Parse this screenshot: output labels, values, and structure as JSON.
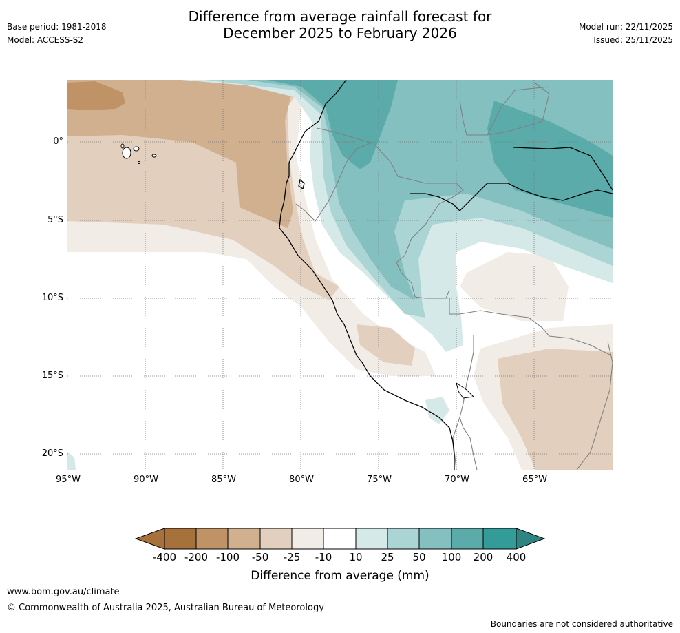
{
  "header": {
    "title_line1": "Difference from average rainfall forecast for",
    "title_line2": "December 2025 to February 2026",
    "base_period": "Base period: 1981-2018",
    "model": "Model: ACCESS-S2",
    "model_run": "Model run: 22/11/2025",
    "issued": "Issued: 25/11/2025"
  },
  "map": {
    "lat_labels": [
      "0°",
      "5°S",
      "10°S",
      "15°S",
      "20°S"
    ],
    "lon_labels": [
      "95°W",
      "90°W",
      "85°W",
      "80°W",
      "75°W",
      "70°W",
      "65°W"
    ],
    "colors": {
      "dry_400": "#a6713a",
      "dry_200": "#c09366",
      "dry_100": "#d0b08f",
      "dry_50": "#e2cfbd",
      "dry_25": "#f1ece6",
      "neutral": "#ffffff",
      "wet_25": "#d5e9e8",
      "wet_50": "#abd5d4",
      "wet_100": "#84c0bf",
      "wet_200": "#5aabaa",
      "wet_400": "#339b98",
      "wet_max": "#2e8481"
    }
  },
  "colorbar": {
    "ticks": [
      "-400",
      "-200",
      "-100",
      "-50",
      "-25",
      "-10",
      "10",
      "25",
      "50",
      "100",
      "200",
      "400"
    ],
    "label": "Difference from average (mm)"
  },
  "footer": {
    "website": "www.bom.gov.au/climate",
    "copyright": "© Commonwealth of Australia 2025, Australian Bureau of Meteorology",
    "disclaimer": "Boundaries are not considered authoritative"
  }
}
